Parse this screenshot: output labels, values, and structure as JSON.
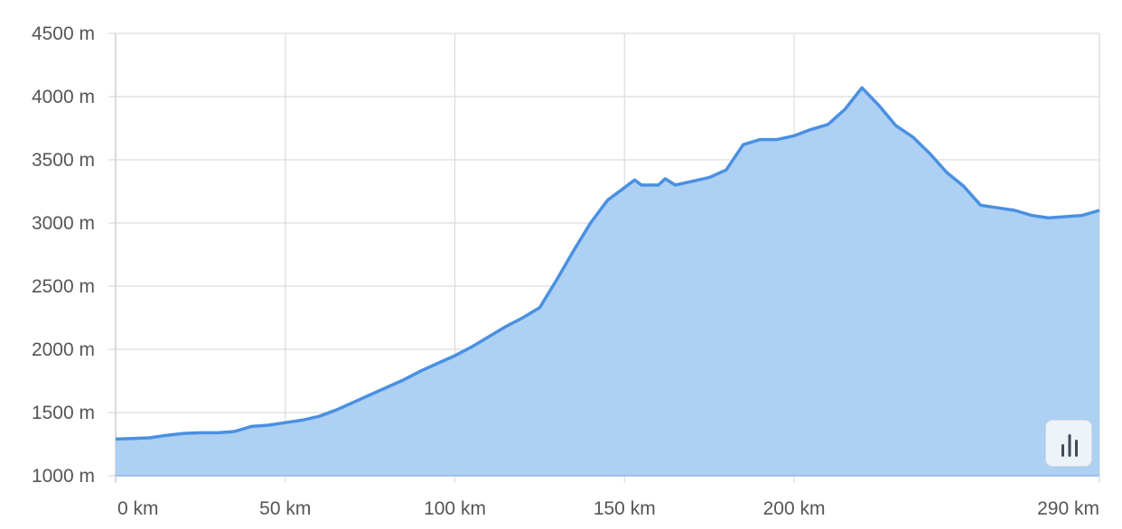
{
  "chart_data": {
    "type": "area",
    "title": "",
    "xlabel": "",
    "ylabel": "",
    "x_unit": "km",
    "y_unit": "m",
    "xlim": [
      0,
      290
    ],
    "ylim": [
      1000,
      4500
    ],
    "y_ticks": [
      1000,
      1500,
      2000,
      2500,
      3000,
      3500,
      4000,
      4500
    ],
    "y_tick_labels": [
      "1000 m",
      "1500 m",
      "2000 m",
      "2500 m",
      "3000 m",
      "3500 m",
      "4000 m",
      "4500 m"
    ],
    "x_ticks": [
      0,
      50,
      100,
      150,
      200,
      290
    ],
    "x_tick_labels": [
      "0 km",
      "50 km",
      "100 km",
      "150 km",
      "200 km",
      "290 km"
    ],
    "grid": true,
    "line_color": "#4a90e2",
    "fill_color": "#a9cdf2",
    "x": [
      0,
      5,
      10,
      15,
      20,
      25,
      30,
      35,
      40,
      45,
      50,
      55,
      60,
      65,
      70,
      75,
      80,
      85,
      90,
      95,
      100,
      105,
      110,
      115,
      120,
      125,
      130,
      135,
      140,
      145,
      150,
      153,
      155,
      160,
      162,
      165,
      170,
      175,
      180,
      185,
      190,
      195,
      200,
      205,
      210,
      215,
      220,
      225,
      230,
      235,
      240,
      245,
      250,
      255,
      260,
      265,
      270,
      275,
      280,
      285,
      290
    ],
    "y": [
      1290,
      1295,
      1300,
      1320,
      1335,
      1340,
      1340,
      1350,
      1390,
      1400,
      1420,
      1440,
      1470,
      1520,
      1580,
      1640,
      1700,
      1760,
      1830,
      1890,
      1950,
      2020,
      2100,
      2180,
      2250,
      2330,
      2550,
      2780,
      3000,
      3180,
      3280,
      3340,
      3300,
      3300,
      3350,
      3300,
      3330,
      3360,
      3420,
      3620,
      3660,
      3660,
      3690,
      3740,
      3780,
      3900,
      4070,
      3930,
      3770,
      3680,
      3550,
      3400,
      3290,
      3140,
      3120,
      3100,
      3060,
      3040,
      3050,
      3060,
      3100
    ]
  },
  "controls": {
    "chart_toggle_icon": "bar-chart-icon"
  }
}
